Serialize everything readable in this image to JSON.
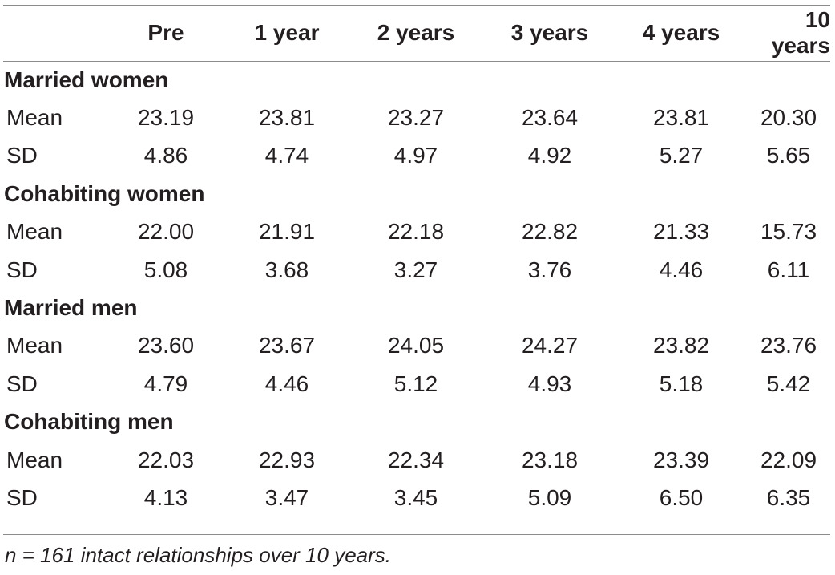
{
  "header": {
    "columns": [
      "",
      "Pre",
      "1 year",
      "2 years",
      "3 years",
      "4 years",
      "10 years"
    ]
  },
  "groups": [
    {
      "label": "Married women",
      "rows": [
        {
          "stat": "Mean",
          "values": [
            "23.19",
            "23.81",
            "23.27",
            "23.64",
            "23.81",
            "20.30"
          ]
        },
        {
          "stat": "SD",
          "values": [
            "4.86",
            "4.74",
            "4.97",
            "4.92",
            "5.27",
            "5.65"
          ]
        }
      ]
    },
    {
      "label": "Cohabiting women",
      "rows": [
        {
          "stat": "Mean",
          "values": [
            "22.00",
            "21.91",
            "22.18",
            "22.82",
            "21.33",
            "15.73"
          ]
        },
        {
          "stat": "SD",
          "values": [
            "5.08",
            "3.68",
            "3.27",
            "3.76",
            "4.46",
            "6.11"
          ]
        }
      ]
    },
    {
      "label": "Married men",
      "rows": [
        {
          "stat": "Mean",
          "values": [
            "23.60",
            "23.67",
            "24.05",
            "24.27",
            "23.82",
            "23.76"
          ]
        },
        {
          "stat": "SD",
          "values": [
            "4.79",
            "4.46",
            "5.12",
            "4.93",
            "5.18",
            "5.42"
          ]
        }
      ]
    },
    {
      "label": "Cohabiting men",
      "rows": [
        {
          "stat": "Mean",
          "values": [
            "22.03",
            "22.93",
            "22.34",
            "23.18",
            "23.39",
            "22.09"
          ]
        },
        {
          "stat": "SD",
          "values": [
            "4.13",
            "3.47",
            "3.45",
            "5.09",
            "6.50",
            "6.35"
          ]
        }
      ]
    }
  ],
  "footnote": "n = 161 intact relationships over 10 years."
}
